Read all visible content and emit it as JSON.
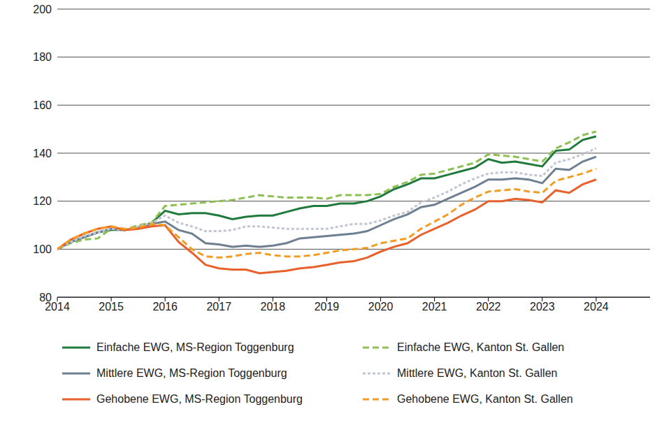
{
  "chart_data": {
    "type": "line",
    "x": [
      2014,
      2014.25,
      2014.5,
      2014.75,
      2015,
      2015.25,
      2015.5,
      2015.75,
      2016,
      2016.25,
      2016.5,
      2016.75,
      2017,
      2017.25,
      2017.5,
      2017.75,
      2018,
      2018.25,
      2018.5,
      2018.75,
      2019,
      2019.25,
      2019.5,
      2019.75,
      2020,
      2020.25,
      2020.5,
      2020.75,
      2021,
      2021.25,
      2021.5,
      2021.75,
      2022,
      2022.25,
      2022.5,
      2022.75,
      2023,
      2023.25,
      2023.5,
      2023.75,
      2024
    ],
    "series": [
      {
        "name": "Einfache EWG, MS-Region Toggenburg",
        "color": "#1f7a3c",
        "line_style": "solid",
        "values": [
          100,
          103,
          105,
          107,
          108,
          108,
          109,
          111,
          116,
          114.5,
          115,
          115,
          114,
          112.5,
          113.5,
          114,
          114,
          115.5,
          117,
          118,
          118,
          119,
          119,
          120,
          122,
          125,
          127,
          129.5,
          129.5,
          131,
          132.5,
          134,
          137.5,
          136,
          136.5,
          135.5,
          134.5,
          141,
          141.5,
          145.5,
          147
        ]
      },
      {
        "name": "Einfache EWG, Kanton St. Gallen",
        "color": "#8cc152",
        "line_style": "dashed",
        "values": [
          100,
          102.5,
          104,
          104.5,
          108.5,
          108,
          110,
          111,
          118,
          118.5,
          119,
          119.5,
          120,
          120.5,
          121.5,
          122.5,
          122,
          121.5,
          121.5,
          121.5,
          121,
          122.5,
          122.5,
          122.5,
          123,
          126,
          128,
          131,
          131.5,
          133,
          134.5,
          136,
          139.5,
          139,
          138.5,
          137.5,
          136.5,
          142,
          144.5,
          147.5,
          149
        ]
      },
      {
        "name": "Mittlere EWG, MS-Region Toggenburg",
        "color": "#6e7f91",
        "line_style": "solid",
        "values": [
          100,
          103,
          105,
          107,
          108.5,
          108,
          109,
          110.5,
          111.5,
          108,
          106.5,
          102.5,
          102,
          101,
          101.5,
          101,
          101.5,
          102.5,
          104.5,
          105,
          105.5,
          106,
          106.5,
          107.5,
          110,
          112.5,
          114.5,
          117.5,
          118.5,
          121,
          123.5,
          126,
          129,
          129,
          129.5,
          129,
          127.5,
          133.5,
          133,
          136.5,
          138.5
        ]
      },
      {
        "name": "Mittlere EWG, Kanton St. Gallen",
        "color": "#c2c6d3",
        "line_style": "dotted",
        "values": [
          100,
          103,
          105.5,
          107,
          108.5,
          108,
          109.5,
          111,
          114,
          111,
          109.5,
          107.5,
          107.5,
          108,
          109.5,
          109.5,
          109,
          108.5,
          108.5,
          108.5,
          108.5,
          109.5,
          110.5,
          110.5,
          112,
          114,
          115.5,
          119.5,
          121.5,
          124,
          127,
          129.5,
          131.5,
          132,
          132,
          131,
          130.5,
          136,
          137.5,
          139.5,
          142
        ]
      },
      {
        "name": "Gehobene EWG, MS-Region Toggenburg",
        "color": "#e8602c",
        "line_style": "solid",
        "values": [
          100,
          104,
          106.5,
          108.5,
          109.5,
          108,
          108.5,
          109.5,
          110,
          103,
          98.5,
          93.5,
          92,
          91.5,
          91.5,
          90,
          90.5,
          91,
          92,
          92.5,
          93.5,
          94.5,
          95,
          96.5,
          99,
          101,
          102.5,
          106,
          108.5,
          111,
          114,
          116.5,
          120,
          120,
          121,
          120.5,
          119.5,
          124.5,
          123.5,
          127,
          129
        ]
      },
      {
        "name": "Gehobene EWG, Kanton St. Gallen",
        "color": "#f29c21",
        "line_style": "dashed",
        "values": [
          100,
          104,
          106.5,
          108.5,
          109.5,
          108.5,
          109,
          110.5,
          110,
          105,
          100,
          97,
          96.5,
          97,
          98,
          98.5,
          97.5,
          97,
          97,
          97.5,
          98.5,
          99.5,
          100,
          100.5,
          102.5,
          103.5,
          104.5,
          108.5,
          111.5,
          114.5,
          118.5,
          121.5,
          124,
          124.5,
          125,
          124,
          123.5,
          128.5,
          130,
          131.5,
          133.5
        ]
      }
    ],
    "xlim": [
      2014,
      2025
    ],
    "xticks": [
      2014,
      2015,
      2016,
      2017,
      2018,
      2019,
      2020,
      2021,
      2022,
      2023,
      2024
    ],
    "ylim": [
      80,
      200
    ],
    "yticks": [
      80,
      100,
      120,
      140,
      160,
      180,
      200
    ],
    "grid": true,
    "legend": "bottom"
  }
}
